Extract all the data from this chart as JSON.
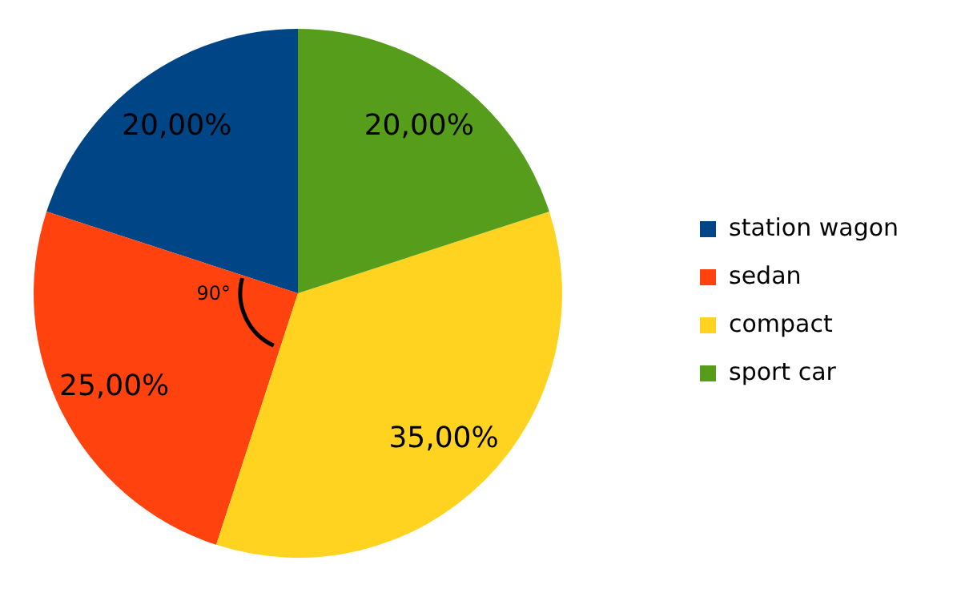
{
  "chart_data": {
    "type": "pie",
    "categories": [
      "station wagon",
      "sedan",
      "compact",
      "sport car"
    ],
    "values": [
      20,
      25,
      35,
      20
    ],
    "colors": [
      "#004586",
      "#ff420e",
      "#ffd320",
      "#579d1c"
    ],
    "value_labels": [
      "20,00%",
      "25,00%",
      "35,00%",
      "20,00%"
    ],
    "annotations": [
      "90°"
    ],
    "legend": "right"
  }
}
